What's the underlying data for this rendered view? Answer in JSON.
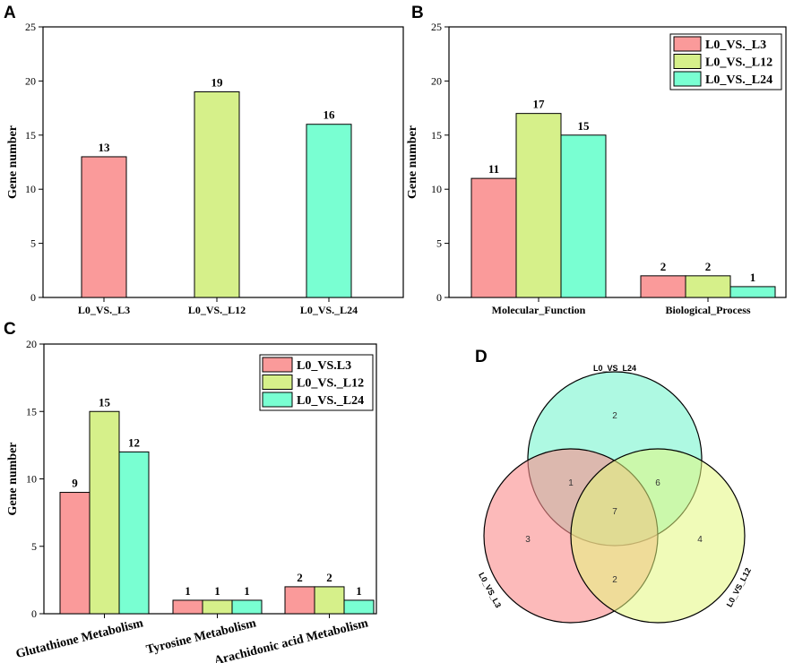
{
  "panels": {
    "A": "A",
    "B": "B",
    "C": "C",
    "D": "D"
  },
  "colors": {
    "series1": "#FA9A9A",
    "series2": "#D6F08A",
    "series3": "#79FFD2",
    "venn_l3": "#FA8C8C",
    "venn_l12": "#E4F77D",
    "venn_l24": "#8CF7D5"
  },
  "chart_data": [
    {
      "id": "A",
      "type": "bar",
      "ylabel": "Gene number",
      "ylim": [
        0,
        25
      ],
      "yticks": [
        0,
        5,
        10,
        15,
        20,
        25
      ],
      "categories": [
        "L0_VS._L3",
        "L0_VS._L12",
        "L0_VS._L24"
      ],
      "values": [
        13,
        19,
        16
      ]
    },
    {
      "id": "B",
      "type": "bar",
      "ylabel": "Gene number",
      "ylim": [
        0,
        25
      ],
      "yticks": [
        0,
        5,
        10,
        15,
        20,
        25
      ],
      "categories": [
        "Molecular_Function",
        "Biological_Process"
      ],
      "legend": "top-right",
      "series": [
        {
          "name": "L0_VS._L3",
          "values": [
            11,
            2
          ]
        },
        {
          "name": "L0_VS._L12",
          "values": [
            17,
            2
          ]
        },
        {
          "name": "L0_VS._L24",
          "values": [
            15,
            1
          ]
        }
      ]
    },
    {
      "id": "C",
      "type": "bar",
      "ylabel": "Gene number",
      "ylim": [
        0,
        20
      ],
      "yticks": [
        0,
        5,
        10,
        15,
        20
      ],
      "categories": [
        "Glutathione Metabolism",
        "Tyrosine Metabolism",
        "Arachidonic acid Metabolism"
      ],
      "legend": "top-right",
      "series": [
        {
          "name": "L0_VS.L3",
          "values": [
            9,
            1,
            2
          ]
        },
        {
          "name": "L0_VS._L12",
          "values": [
            15,
            1,
            2
          ]
        },
        {
          "name": "L0_VS._L24",
          "values": [
            12,
            1,
            1
          ]
        }
      ]
    },
    {
      "id": "D",
      "type": "venn",
      "sets": [
        "L0_VS_L24",
        "L0_VS_L3",
        "L0_VS_L12"
      ],
      "regions": {
        "L24_only": 2,
        "L3_only": 3,
        "L12_only": 4,
        "L3_L24": 1,
        "L24_L12": 6,
        "L3_L12": 2,
        "all": 7
      }
    }
  ]
}
